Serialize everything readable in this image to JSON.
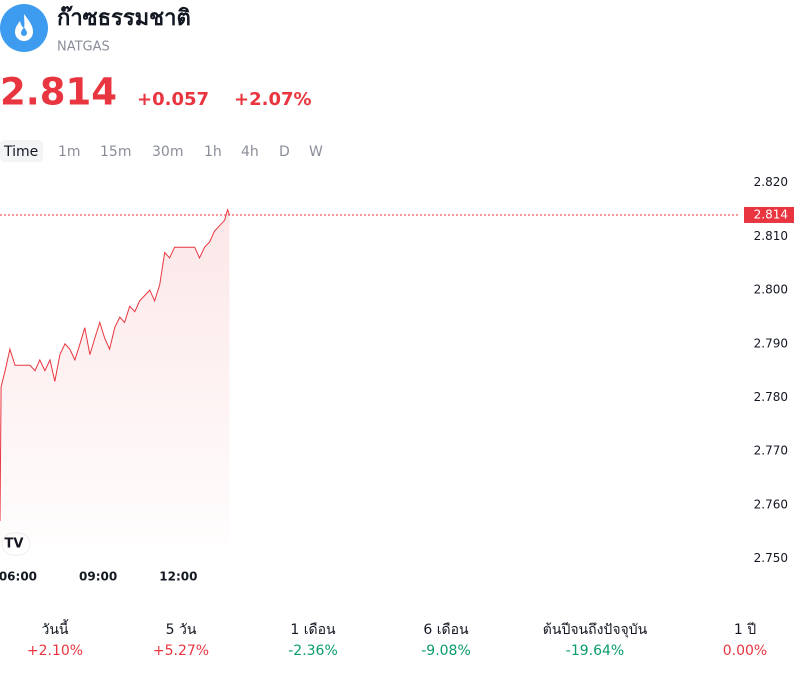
{
  "header": {
    "title": "ก๊าซธรรมชาติ",
    "symbol": "NATGAS",
    "price": "2.814",
    "change": "+0.057",
    "change_pct": "+2.07%"
  },
  "tabs": [
    "Time",
    "1m",
    "15m",
    "30m",
    "1h",
    "4h",
    "D",
    "W"
  ],
  "chart_data": {
    "type": "line",
    "color": "#e8353f",
    "x": [
      5.33,
      5.37,
      5.52,
      5.7,
      5.89,
      6.45,
      6.64,
      6.82,
      7.01,
      7.2,
      7.38,
      7.57,
      7.76,
      7.94,
      8.13,
      8.32,
      8.5,
      8.69,
      8.87,
      9.06,
      9.25,
      9.43,
      9.62,
      9.81,
      9.99,
      10.18,
      10.37,
      10.55,
      10.74,
      10.93,
      11.11,
      11.3,
      11.49,
      11.67,
      11.86,
      12.23,
      12.61,
      12.79,
      12.98,
      13.17,
      13.35,
      13.54,
      13.73,
      13.84,
      13.91
    ],
    "values": [
      2.757,
      2.782,
      2.785,
      2.789,
      2.786,
      2.786,
      2.785,
      2.787,
      2.785,
      2.787,
      2.783,
      2.788,
      2.79,
      2.789,
      2.787,
      2.79,
      2.793,
      2.788,
      2.791,
      2.794,
      2.791,
      2.789,
      2.793,
      2.795,
      2.794,
      2.797,
      2.796,
      2.798,
      2.799,
      2.8,
      2.798,
      2.801,
      2.807,
      2.806,
      2.808,
      2.808,
      2.808,
      2.806,
      2.808,
      2.809,
      2.811,
      2.812,
      2.813,
      2.815,
      2.814
    ],
    "xlim": [
      5.33,
      33
    ],
    "xticks": [
      {
        "value": 6,
        "label": "06:00"
      },
      {
        "value": 9,
        "label": "09:00"
      },
      {
        "value": 12,
        "label": "12:00"
      }
    ],
    "ylim": [
      2.749,
      2.822
    ],
    "yticks": [
      {
        "value": 2.82,
        "label": "2.820"
      },
      {
        "value": 2.81,
        "label": "2.810"
      },
      {
        "value": 2.8,
        "label": "2.800"
      },
      {
        "value": 2.79,
        "label": "2.790"
      },
      {
        "value": 2.78,
        "label": "2.780"
      },
      {
        "value": 2.77,
        "label": "2.770"
      },
      {
        "value": 2.76,
        "label": "2.760"
      },
      {
        "value": 2.75,
        "label": "2.750"
      }
    ],
    "price_line": 2.814,
    "grid": false
  },
  "performance": [
    {
      "label": "วันนี้",
      "value": "+2.10%",
      "dir": "up"
    },
    {
      "label": "5 วัน",
      "value": "+5.27%",
      "dir": "up"
    },
    {
      "label": "1 เดือน",
      "value": "-2.36%",
      "dir": "down"
    },
    {
      "label": "6 เดือน",
      "value": "-9.08%",
      "dir": "down"
    },
    {
      "label": "ต้นปีจนถึงปัจจุบัน",
      "value": "-19.64%",
      "dir": "down"
    },
    {
      "label": "1 ปี",
      "value": "0.00%",
      "dir": "up"
    }
  ]
}
